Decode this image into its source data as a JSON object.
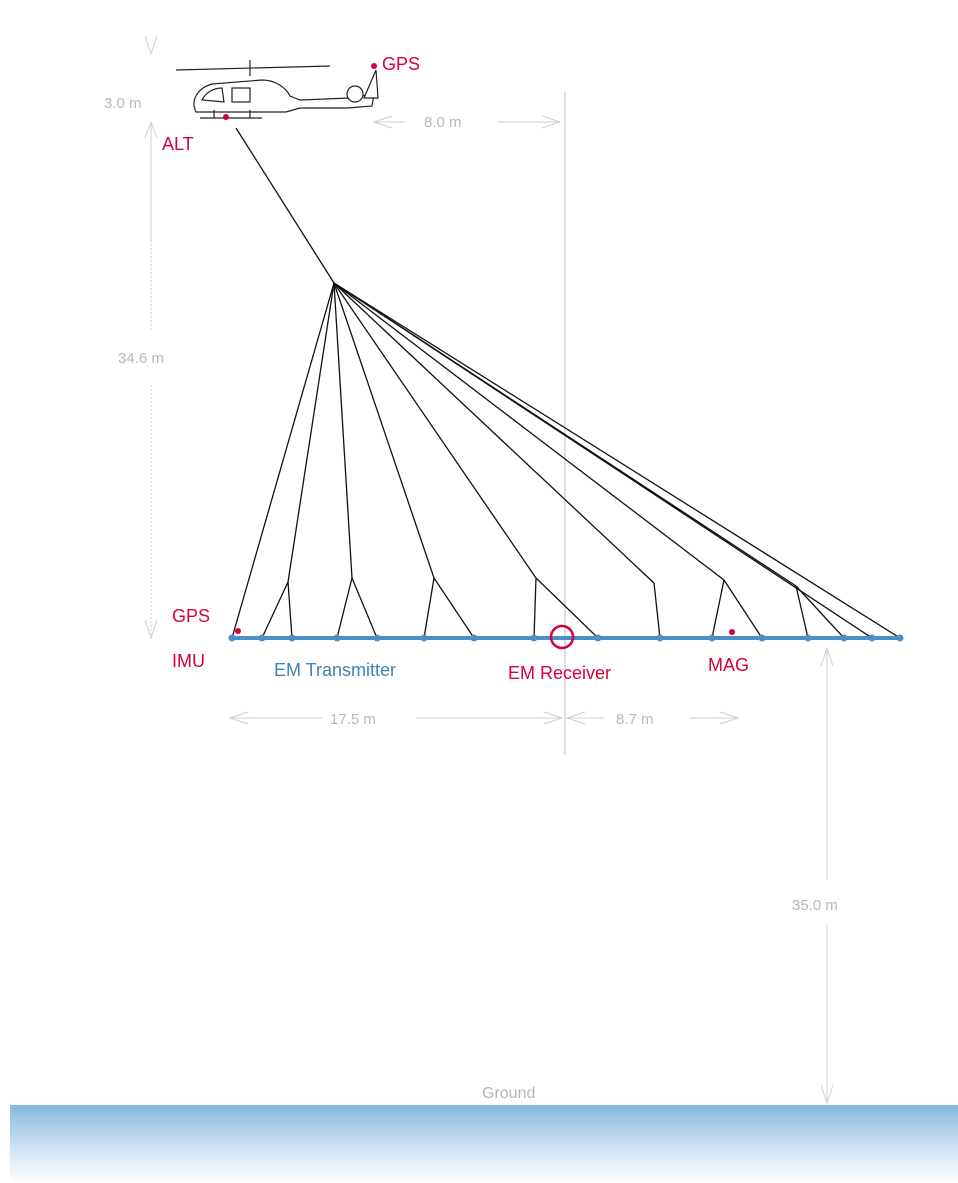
{
  "labels": {
    "gps_top": "GPS",
    "alt": "ALT",
    "gps_bottom": "GPS",
    "imu": "IMU",
    "em_transmitter": "EM Transmitter",
    "em_receiver": "EM Receiver",
    "mag": "MAG",
    "ground": "Ground"
  },
  "dimensions": {
    "heli_height": "3.0 m",
    "gps_offset": "8.0 m",
    "tow_length": "34.6 m",
    "transmitter_length": "17.5 m",
    "receiver_offset": "8.7 m",
    "ground_clearance": "35.0 m"
  },
  "colors": {
    "sensor_red": "#d8003a",
    "loop_blue": "#4a8fc8",
    "dimension_gray": "#c8c8c8",
    "ground_blue_top": "#88b9e2",
    "ground_blue_bottom": "#ffffff"
  }
}
